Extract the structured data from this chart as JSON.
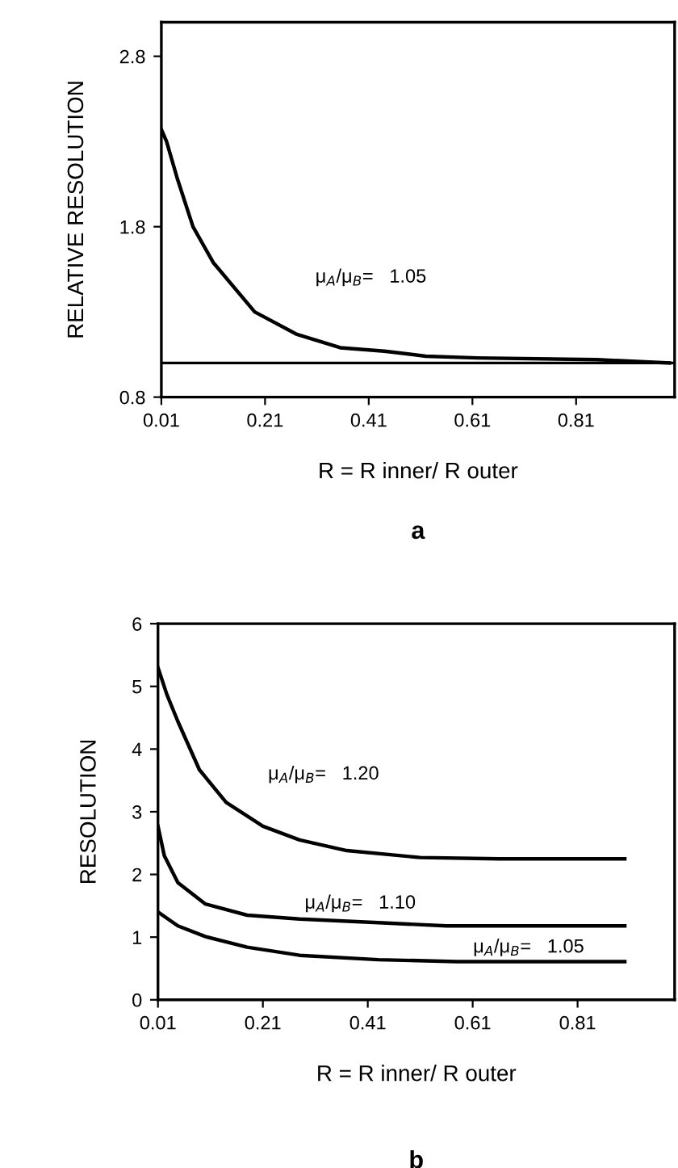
{
  "chart_data": [
    {
      "type": "line",
      "ylabel": "RELATIVE RESOLUTION",
      "xlabel": "R = R inner/ R outer",
      "xlim": [
        0.01,
        1.0
      ],
      "ylim": [
        0.8,
        3.0
      ],
      "xticks": [
        {
          "value": 0.01,
          "label": "0.01"
        },
        {
          "value": 0.21,
          "label": "0.21"
        },
        {
          "value": 0.41,
          "label": "0.41"
        },
        {
          "value": 0.61,
          "label": "0.61"
        },
        {
          "value": 0.81,
          "label": "0.81"
        }
      ],
      "yticks": [
        {
          "value": 0.8,
          "label": "0.8"
        },
        {
          "value": 1.8,
          "label": "1.8"
        },
        {
          "value": 2.8,
          "label": "2.8"
        }
      ],
      "grid": false,
      "legend": false,
      "series": [
        {
          "name": "μ$_{A}$/μ$_{B}$=   1.05",
          "color": "#000000",
          "x": [
            0.01,
            0.02,
            0.04,
            0.071,
            0.11,
            0.19,
            0.27,
            0.355,
            0.44,
            0.52,
            0.62,
            0.85,
            0.99
          ],
          "values": [
            2.37,
            2.3,
            2.09,
            1.8,
            1.59,
            1.3,
            1.17,
            1.09,
            1.07,
            1.04,
            1.03,
            1.02,
            1.0
          ]
        }
      ],
      "ref_lines": [
        {
          "axis": "y",
          "value": 1.0,
          "color": "#000000"
        }
      ],
      "annotations": [
        "a"
      ]
    },
    {
      "type": "line",
      "ylabel": "RESOLUTION",
      "xlabel": "R = R inner/ R outer",
      "xlim": [
        0.01,
        0.995
      ],
      "ylim": [
        0,
        6
      ],
      "xticks": [
        {
          "value": 0.01,
          "label": "0.01"
        },
        {
          "value": 0.21,
          "label": "0.21"
        },
        {
          "value": 0.41,
          "label": "0.41"
        },
        {
          "value": 0.61,
          "label": "0.61"
        },
        {
          "value": 0.81,
          "label": "0.81"
        }
      ],
      "yticks": [
        0,
        1,
        2,
        3,
        4,
        5,
        6
      ],
      "grid": false,
      "legend": false,
      "series": [
        {
          "name": "μ$_{A}$/μ$_{B}$=   1.20",
          "color": "#000000",
          "x": [
            0.01,
            0.027,
            0.048,
            0.089,
            0.14,
            0.21,
            0.28,
            0.37,
            0.51,
            0.66,
            0.9
          ],
          "values": [
            5.3,
            4.87,
            4.44,
            3.67,
            3.15,
            2.77,
            2.55,
            2.38,
            2.27,
            2.25,
            2.25
          ]
        },
        {
          "name": "μ$_{A}$/μ$_{B}$=   1.10",
          "color": "#000000",
          "x": [
            0.01,
            0.022,
            0.048,
            0.1,
            0.18,
            0.28,
            0.43,
            0.56,
            0.9
          ],
          "values": [
            2.77,
            2.3,
            1.87,
            1.53,
            1.35,
            1.29,
            1.23,
            1.18,
            1.18
          ]
        },
        {
          "name": "μ$_{A}$/μ$_{B}$=   1.05",
          "color": "#000000",
          "x": [
            0.01,
            0.048,
            0.1,
            0.18,
            0.28,
            0.43,
            0.58,
            0.9
          ],
          "values": [
            1.4,
            1.18,
            1.01,
            0.84,
            0.71,
            0.64,
            0.61,
            0.61
          ]
        }
      ],
      "annotations": [
        "b"
      ]
    }
  ]
}
